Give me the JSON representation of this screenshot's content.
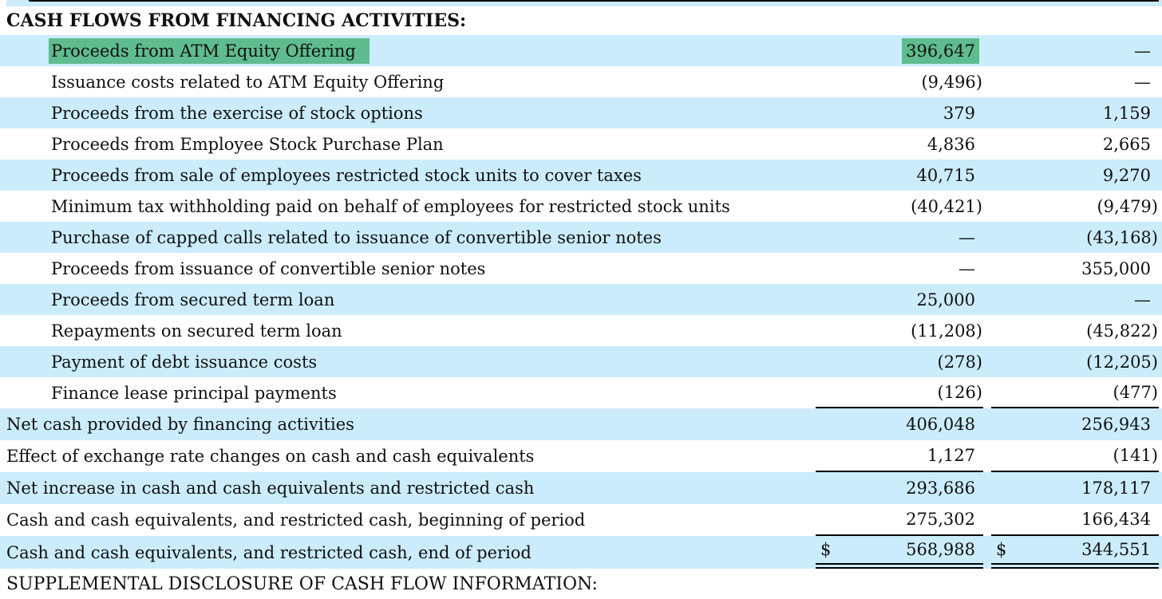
{
  "page": {
    "section_header": "CASH FLOWS FROM FINANCING ACTIVITIES:",
    "footer_header": "SUPPLEMENTAL DISCLOSURE OF CASH FLOW INFORMATION:"
  },
  "colors": {
    "row_shading": "#cbecfb",
    "search_highlight": "#5fbc8e",
    "text": "#101010",
    "rule": "#000000"
  },
  "table": {
    "currency_symbol": "$",
    "rows": [
      {
        "label": "Proceeds from ATM Equity Offering",
        "v1": "396,647",
        "v2": "—",
        "indent": true,
        "shaded": true,
        "hl_label": true,
        "hl_v1": true
      },
      {
        "label": "Issuance costs related to ATM Equity Offering",
        "v1": "(9,496)",
        "v2": "—",
        "indent": true
      },
      {
        "label": "Proceeds from the exercise of stock options",
        "v1": "379",
        "v2": "1,159",
        "indent": true,
        "shaded": true
      },
      {
        "label": "Proceeds from Employee Stock Purchase Plan",
        "v1": "4,836",
        "v2": "2,665",
        "indent": true
      },
      {
        "label": "Proceeds from sale of employees restricted stock units to cover taxes",
        "v1": "40,715",
        "v2": "9,270",
        "indent": true,
        "shaded": true
      },
      {
        "label": "Minimum tax withholding paid on behalf of employees for restricted stock units",
        "v1": "(40,421)",
        "v2": "(9,479)",
        "indent": true
      },
      {
        "label": "Purchase of capped calls related to issuance of convertible senior notes",
        "v1": "—",
        "v2": "(43,168)",
        "indent": true,
        "shaded": true
      },
      {
        "label": "Proceeds from issuance of convertible senior notes",
        "v1": "—",
        "v2": "355,000",
        "indent": true
      },
      {
        "label": "Proceeds from secured term loan",
        "v1": "25,000",
        "v2": "—",
        "indent": true,
        "shaded": true
      },
      {
        "label": "Repayments on secured term loan",
        "v1": "(11,208)",
        "v2": "(45,822)",
        "indent": true
      },
      {
        "label": "Payment of debt issuance costs",
        "v1": "(278)",
        "v2": "(12,205)",
        "indent": true,
        "shaded": true
      },
      {
        "label": "Finance lease principal payments",
        "v1": "(126)",
        "v2": "(477)",
        "indent": true,
        "border_bottom": true
      },
      {
        "label": "Net cash provided by financing activities",
        "v1": "406,048",
        "v2": "256,943",
        "shaded": true,
        "tall": true
      },
      {
        "label": "Effect of exchange rate changes on cash and cash equivalents",
        "v1": "1,127",
        "v2": "(141)",
        "tall": true,
        "border_bottom": true
      },
      {
        "label": "Net increase in cash and cash equivalents and restricted cash",
        "v1": "293,686",
        "v2": "178,117",
        "shaded": true,
        "tall": true
      },
      {
        "label": "Cash and cash equivalents, and restricted cash, beginning of period",
        "v1": "275,302",
        "v2": "166,434",
        "tall": true,
        "border_bottom": true
      },
      {
        "label": "Cash and cash equivalents, and restricted cash, end of period",
        "v1": "568,988",
        "v2": "344,551",
        "shaded": true,
        "total": true,
        "dollar": true
      }
    ]
  }
}
